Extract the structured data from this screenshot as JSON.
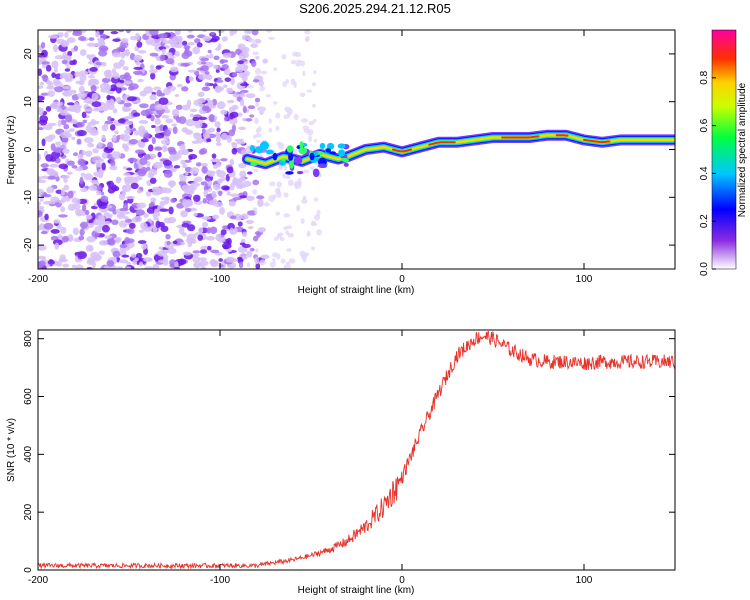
{
  "title": "S206.2025.294.21.12.R05",
  "chart_data": [
    {
      "type": "heatmap",
      "xlabel": "Height of straight line (km)",
      "ylabel": "Frequency (Hz)",
      "xlim": [
        -200,
        150
      ],
      "ylim": [
        -25,
        25
      ],
      "xticks": [
        -200,
        -100,
        0,
        100
      ],
      "yticks": [
        -20,
        -10,
        0,
        10,
        20
      ],
      "colorbar": {
        "label": "Normalized spectral amplitude",
        "range": [
          0.0,
          1.0
        ],
        "ticks": [
          "0.0",
          "0.2",
          "0.4",
          "0.6",
          "0.8"
        ]
      },
      "ridge": {
        "x": [
          -85,
          -75,
          -65,
          -55,
          -45,
          -35,
          -30,
          -20,
          -10,
          0,
          10,
          20,
          30,
          40,
          50,
          60,
          70,
          80,
          90,
          100,
          110,
          120,
          130,
          140,
          150
        ],
        "freq": [
          -2,
          -3,
          -1.5,
          -2.5,
          -1,
          -2,
          -1.5,
          0,
          0.5,
          -0.5,
          0.5,
          1.5,
          1.5,
          2,
          2.5,
          2.5,
          2.5,
          3,
          3,
          2,
          1.5,
          2,
          2,
          2,
          2
        ]
      }
    },
    {
      "type": "line",
      "xlabel": "Height of straight line (km)",
      "ylabel": "SNR (10 * v/v)",
      "xlim": [
        -200,
        150
      ],
      "ylim": [
        0,
        830
      ],
      "xticks": [
        -200,
        -100,
        0,
        100
      ],
      "yticks": [
        0,
        200,
        400,
        600,
        800
      ],
      "series": [
        {
          "name": "SNR",
          "color": "#e8322a",
          "x": [
            -200,
            -180,
            -160,
            -140,
            -120,
            -100,
            -90,
            -80,
            -70,
            -60,
            -50,
            -40,
            -30,
            -20,
            -10,
            0,
            10,
            20,
            30,
            40,
            45,
            50,
            60,
            70,
            80,
            90,
            100,
            110,
            120,
            130,
            140,
            150
          ],
          "y": [
            15,
            15,
            15,
            15,
            15,
            15,
            15,
            15,
            25,
            35,
            50,
            70,
            100,
            150,
            220,
            320,
            470,
            610,
            740,
            800,
            810,
            800,
            760,
            730,
            720,
            720,
            715,
            720,
            720,
            720,
            720,
            720
          ]
        }
      ]
    }
  ]
}
